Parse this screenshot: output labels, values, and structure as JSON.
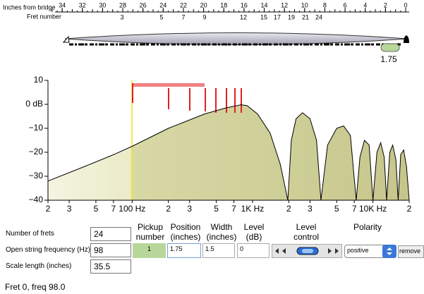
{
  "ruler": {
    "inches_label": "Inches from bridge",
    "fret_label": "Fret number",
    "inches": [
      34,
      32,
      30,
      28,
      26,
      24,
      22,
      20,
      18,
      16,
      14,
      12,
      10,
      8,
      6,
      4,
      2,
      0
    ],
    "frets": [
      3,
      5,
      7,
      9,
      12,
      15,
      17,
      19,
      21,
      24
    ]
  },
  "chart_data": {
    "type": "area",
    "x_scale": "log",
    "color": "#cccc90",
    "line_color": "#000000",
    "x": [
      20,
      40,
      70,
      100,
      200,
      400,
      600,
      800,
      900,
      1100,
      1400,
      1700,
      1964,
      2100,
      2300,
      2600,
      3000,
      3400,
      3700,
      4200,
      5000,
      5700,
      6500,
      7260,
      7800,
      8500,
      9300,
      10000,
      10800,
      11600,
      12400,
      13000,
      13800,
      14600,
      15500,
      16200,
      17000,
      18000,
      19000,
      20000
    ],
    "values": [
      -32,
      -26,
      -21,
      -17.5,
      -10,
      -4,
      -1.5,
      -0.2,
      -0.5,
      -4,
      -12,
      -25,
      -40,
      -15,
      -6,
      -3.5,
      -6,
      -15,
      -40,
      -17,
      -10,
      -9,
      -13,
      -40,
      -22,
      -15,
      -17,
      -40,
      -20,
      -16,
      -22,
      -40,
      -20,
      -17,
      -23,
      -40,
      -21,
      -19,
      -26,
      -40
    ],
    "xlim": [
      20,
      20000
    ],
    "ylim": [
      -40,
      10
    ],
    "xticks": [
      {
        "value": 20,
        "label": "2"
      },
      {
        "value": 30,
        "label": "3"
      },
      {
        "value": 50,
        "label": "5"
      },
      {
        "value": 70,
        "label": "7"
      },
      {
        "value": 100,
        "label": "100 Hz"
      },
      {
        "value": 200,
        "label": "2"
      },
      {
        "value": 300,
        "label": "3"
      },
      {
        "value": 500,
        "label": "5"
      },
      {
        "value": 700,
        "label": "7"
      },
      {
        "value": 1000,
        "label": "1K Hz"
      },
      {
        "value": 2000,
        "label": "2"
      },
      {
        "value": 3000,
        "label": "3"
      },
      {
        "value": 5000,
        "label": "5"
      },
      {
        "value": 7000,
        "label": "7"
      },
      {
        "value": 10000,
        "label": "10K Hz"
      },
      {
        "value": 20000,
        "label": "2"
      }
    ],
    "yticks": [
      10,
      {
        "value": 0,
        "label": "0 dB"
      },
      {
        "value": -10,
        "label": "−10"
      },
      {
        "value": -20,
        "label": "−20"
      },
      {
        "value": -30,
        "label": "−30"
      },
      {
        "value": -40,
        "label": "−40"
      }
    ]
  },
  "form": {
    "fields": [
      {
        "label": "Number of frets",
        "value": 24
      },
      {
        "label": "Open string frequency (Hz)",
        "value": 98
      },
      {
        "label": "Scale length (inches)",
        "value": 35.5
      }
    ],
    "columns": [
      [
        "Pickup",
        "number"
      ],
      [
        "Position",
        "(inches)"
      ],
      [
        "Width",
        "(inches)"
      ],
      [
        "Level",
        "(dB)"
      ],
      [
        "Level",
        "control"
      ],
      [
        "Polarity"
      ]
    ]
  },
  "pickups": [
    {
      "number": 1,
      "position": 1.75,
      "width": 1.5,
      "level": 0,
      "polarity": "positive",
      "remove": "remove"
    }
  ],
  "status": "Fret 0, freq 98.0"
}
